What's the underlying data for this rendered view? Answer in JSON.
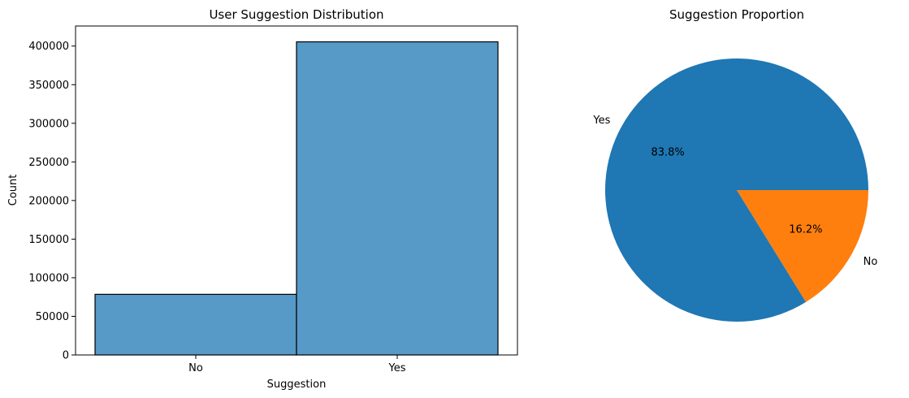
{
  "chart_data": [
    {
      "type": "bar",
      "title": "User Suggestion Distribution",
      "xlabel": "Suggestion",
      "ylabel": "Count",
      "categories": [
        "No",
        "Yes"
      ],
      "values": [
        78500,
        405500
      ],
      "ylim": [
        0,
        426000
      ],
      "yticks": [
        0,
        50000,
        100000,
        150000,
        200000,
        250000,
        300000,
        350000,
        400000
      ],
      "ytick_labels": [
        "0",
        "50000",
        "100000",
        "150000",
        "200000",
        "250000",
        "300000",
        "350000",
        "400000"
      ],
      "colors": {
        "bar": "#5799c7",
        "edge": "#000000"
      },
      "grid": false
    },
    {
      "type": "pie",
      "title": "Suggestion Proportion",
      "labels": [
        "Yes",
        "No"
      ],
      "values": [
        83.8,
        16.2
      ],
      "pct_labels": [
        "83.8%",
        "16.2%"
      ],
      "colors": [
        "#1f77b4",
        "#ff7f0e"
      ]
    }
  ]
}
